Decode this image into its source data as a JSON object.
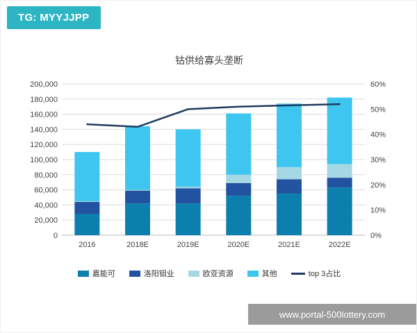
{
  "badge": {
    "text": "TG: MYYJJPP",
    "bg": "#2eb5c4"
  },
  "watermark": {
    "text": "www.portal-500lottery.com",
    "bg": "#9b9b9b"
  },
  "chart_data": {
    "type": "bar",
    "subtype": "stacked-bar-with-line",
    "title": "钴供给寡头垄断",
    "categories": [
      "2016",
      "2018E",
      "2019E",
      "2020E",
      "2021E",
      "2022E"
    ],
    "series": [
      {
        "name": "嘉能可",
        "type": "bar",
        "axis": "left",
        "color": "#0d7fae",
        "values": [
          28000,
          42000,
          42000,
          52000,
          55000,
          63000
        ]
      },
      {
        "name": "洛阳钼业",
        "type": "bar",
        "axis": "left",
        "color": "#2153a0",
        "values": [
          16000,
          17000,
          20000,
          17000,
          19000,
          13000
        ]
      },
      {
        "name": "欧亚资源",
        "type": "bar",
        "axis": "left",
        "color": "#a5d8e4",
        "values": [
          1000,
          1000,
          2000,
          11000,
          16000,
          18000
        ]
      },
      {
        "name": "其他",
        "type": "bar",
        "axis": "left",
        "color": "#3ec6f0",
        "values": [
          65000,
          84000,
          76000,
          81000,
          84000,
          88000
        ]
      },
      {
        "name": "top 3占比",
        "type": "line",
        "axis": "right",
        "color": "#1d3a5e",
        "values": [
          44,
          43,
          50,
          51,
          51.5,
          52
        ]
      }
    ],
    "left_axis": {
      "min": 0,
      "max": 200000,
      "step": 20000,
      "ticks": [
        "0",
        "20,000",
        "40,000",
        "60,000",
        "80,000",
        "100,000",
        "120,000",
        "140,000",
        "160,000",
        "180,000",
        "200,000"
      ]
    },
    "right_axis": {
      "min": 0,
      "max": 60,
      "step": 10,
      "ticks": [
        "0%",
        "10%",
        "20%",
        "30%",
        "40%",
        "50%",
        "60%"
      ]
    },
    "grid": true,
    "legend_position": "bottom"
  }
}
